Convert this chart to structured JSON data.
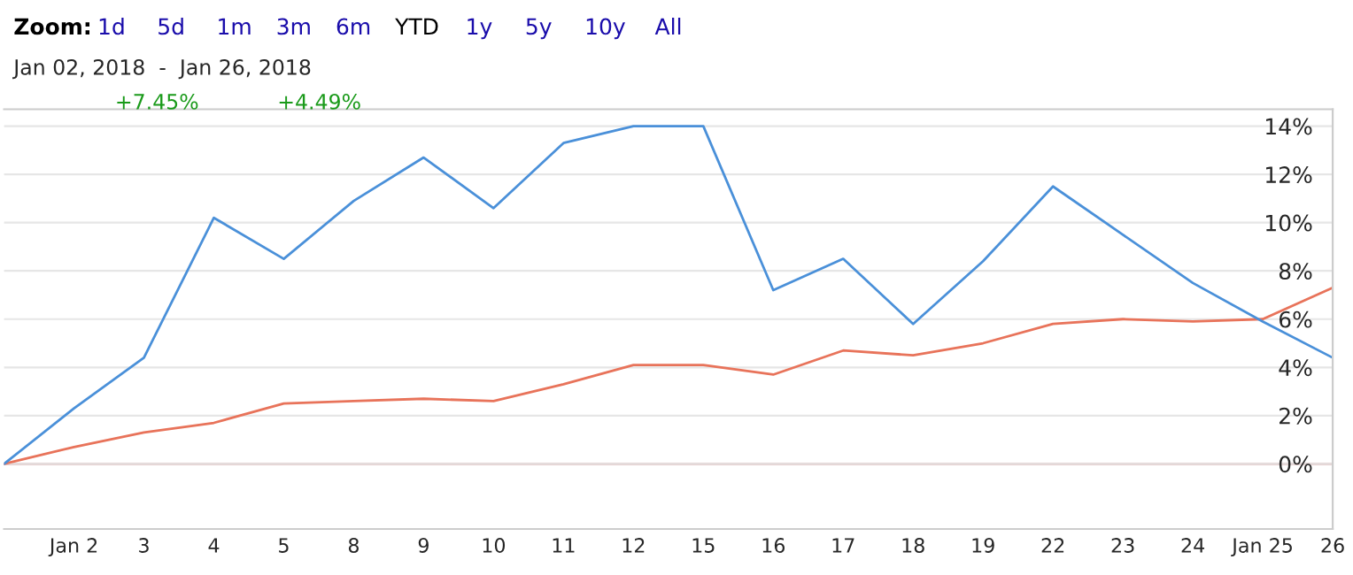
{
  "chart_data": {
    "type": "line",
    "categories": [
      null,
      "Jan 2",
      "3",
      "4",
      "5",
      "8",
      "9",
      "10",
      "11",
      "12",
      "15",
      "16",
      "17",
      "18",
      "19",
      "22",
      "23",
      "24",
      "Jan 25",
      "26"
    ],
    "series": [
      {
        "color": "#e8735a",
        "values": [
          0,
          0.7,
          1.3,
          1.7,
          2.5,
          2.6,
          2.7,
          2.6,
          3.3,
          4.1,
          4.1,
          3.7,
          4.7,
          4.5,
          5.0,
          5.8,
          6.0,
          5.9,
          6.0,
          7.3
        ]
      },
      {
        "color": "#4a90d9",
        "values": [
          0,
          2.3,
          4.4,
          10.2,
          8.5,
          10.9,
          12.7,
          10.6,
          13.3,
          14.0,
          14.0,
          7.2,
          8.5,
          5.8,
          8.4,
          11.5,
          9.5,
          7.5,
          5.9,
          4.4
        ]
      }
    ],
    "ylim": [
      -2.7,
      14.7
    ],
    "yticks": [
      {
        "value": 0,
        "label": "0%"
      },
      {
        "value": 2,
        "label": "2%"
      },
      {
        "value": 4,
        "label": "4%"
      },
      {
        "value": 6,
        "label": "6%"
      },
      {
        "value": 8,
        "label": "8%"
      },
      {
        "value": 10,
        "label": "10%"
      },
      {
        "value": 12,
        "label": "12%"
      },
      {
        "value": 14,
        "label": "14%"
      }
    ],
    "grid": "y",
    "ref_lines": [
      {
        "axis": "y",
        "value": 0,
        "color": "#d99a9a"
      }
    ],
    "annotations": [
      "Zoom:",
      "1d",
      "5d",
      "1m",
      "3m",
      "6m",
      "YTD",
      "1y",
      "5y",
      "10y",
      "All",
      "Jan 02, 2018  -  Jan 26, 2018",
      "+7.45%",
      "+4.49%"
    ]
  }
}
